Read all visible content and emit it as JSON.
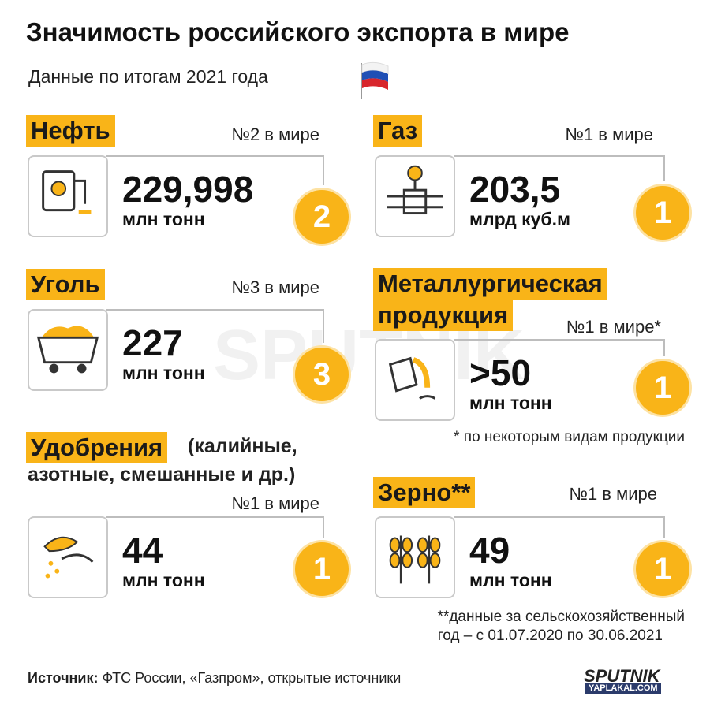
{
  "header": {
    "title": "Значимость российского экспорта в мире",
    "subtitle": "Данные по итогам 2021 года"
  },
  "cards": [
    {
      "heading": [
        "Нефть"
      ],
      "rank": "№2 в мире",
      "value": "229,998",
      "unit": "млн тонн",
      "badge": 2
    },
    {
      "heading": [
        "Газ"
      ],
      "rank": "№1 в мире",
      "value": "203,5",
      "unit": "млрд куб.м",
      "badge": 1
    },
    {
      "heading": [
        "Уголь"
      ],
      "rank": "№3 в мире",
      "value": "227",
      "unit": "млн тонн",
      "badge": 3
    },
    {
      "heading": [
        "Металлургическая",
        "продукция"
      ],
      "rank": "№1 в мире*",
      "value": ">50",
      "unit": "млн тонн",
      "badge": 1,
      "footnote": [
        "* по некоторым видам продукции"
      ]
    },
    {
      "heading": [
        "Удобрения"
      ],
      "heading_note": [
        "(калийные,",
        "азотные, смешанные и др.)"
      ],
      "rank": "№1 в мире",
      "value": "44",
      "unit": "млн тонн",
      "badge": 1
    },
    {
      "heading": [
        "Зерно**"
      ],
      "rank": "№1 в мире",
      "value": "49",
      "unit": "млн тонн",
      "badge": 1,
      "footnote": [
        "**данные за сельскохозяйственный",
        "год – с 01.07.2020 по 30.06.2021"
      ]
    }
  ],
  "source": {
    "label": "Источник:",
    "text": "ФТС России, «Газпром», открытые источники"
  },
  "logo": "SPUTNIK",
  "watermark": "SPUTNIK",
  "site": "YAPLAKAL.COM"
}
